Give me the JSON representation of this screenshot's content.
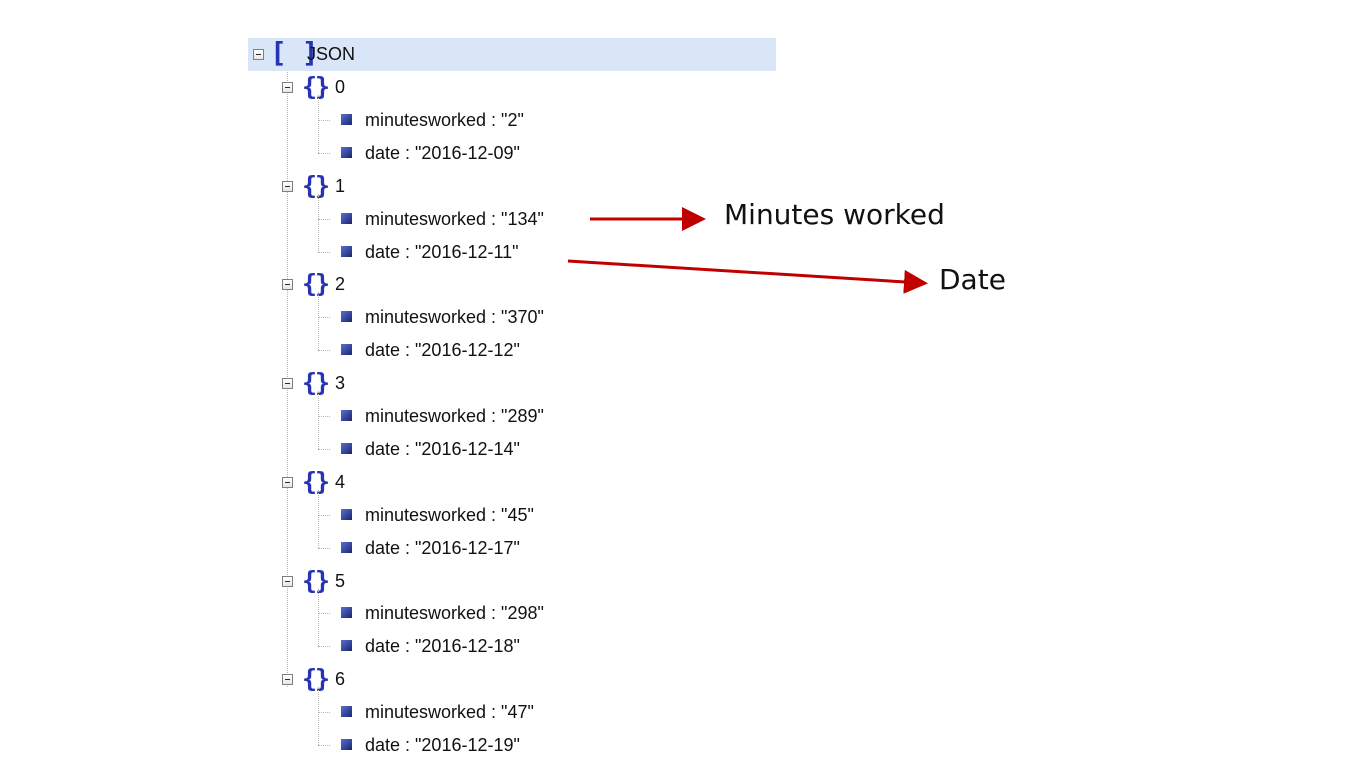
{
  "tree": {
    "root_label": "JSON",
    "items": [
      {
        "index": "0",
        "fields": [
          {
            "text": "minutesworked : \"2\""
          },
          {
            "text": "date : \"2016-12-09\""
          }
        ]
      },
      {
        "index": "1",
        "fields": [
          {
            "text": "minutesworked : \"134\""
          },
          {
            "text": "date : \"2016-12-11\""
          }
        ]
      },
      {
        "index": "2",
        "fields": [
          {
            "text": "minutesworked : \"370\""
          },
          {
            "text": "date : \"2016-12-12\""
          }
        ]
      },
      {
        "index": "3",
        "fields": [
          {
            "text": "minutesworked : \"289\""
          },
          {
            "text": "date : \"2016-12-14\""
          }
        ]
      },
      {
        "index": "4",
        "fields": [
          {
            "text": "minutesworked : \"45\""
          },
          {
            "text": "date : \"2016-12-17\""
          }
        ]
      },
      {
        "index": "5",
        "fields": [
          {
            "text": "minutesworked : \"298\""
          },
          {
            "text": "date : \"2016-12-18\""
          }
        ]
      },
      {
        "index": "6",
        "fields": [
          {
            "text": "minutesworked : \"47\""
          },
          {
            "text": "date : \"2016-12-19\""
          }
        ]
      }
    ]
  },
  "annotations": {
    "minutes_label": "Minutes worked",
    "date_label": "Date",
    "arrow_color": "#c00000"
  },
  "icons": {
    "array": "array-brackets-icon",
    "object": "object-braces-icon",
    "leaf": "leaf-square-icon",
    "toggle": "collapse-toggle-icon"
  },
  "colors": {
    "selection_background": "#d9e6f7",
    "bracket_color": "#2633b4"
  }
}
